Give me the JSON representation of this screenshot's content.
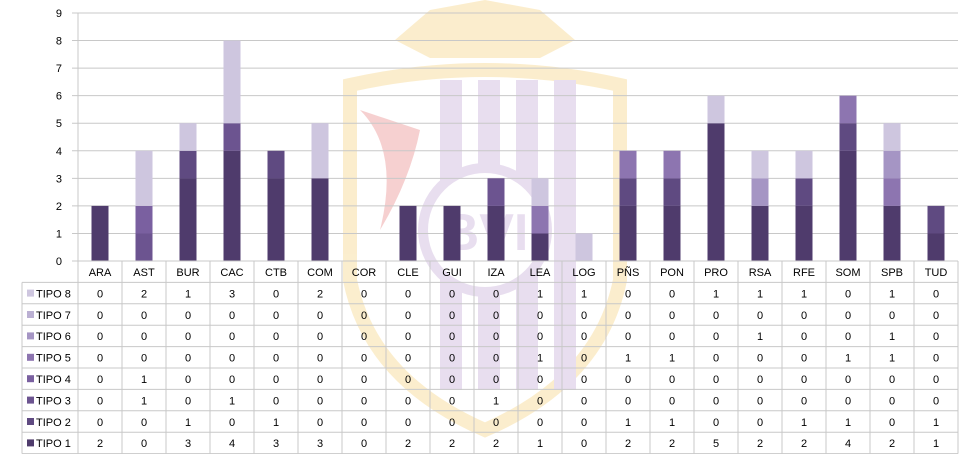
{
  "colors": {
    "tipo1": "#4f3b6c",
    "tipo2": "#5f4a81",
    "tipo3": "#6c5490",
    "tipo4": "#7a60a0",
    "tipo5": "#8d75b0",
    "tipo6": "#a595c4",
    "tipo7": "#bbb0d3",
    "tipo8": "#cec6df",
    "grid": "#c8c8c8",
    "text": "#000000",
    "watermark_gold": "#f2c24e",
    "watermark_purple": "#b08cc8",
    "watermark_red": "#e05a5a"
  },
  "watermark": {
    "text": "BVI"
  },
  "chart_data": {
    "type": "bar",
    "stacked": true,
    "categories": [
      "ARA",
      "AST",
      "BUR",
      "CAC",
      "CTB",
      "COM",
      "COR",
      "CLE",
      "GUI",
      "IZA",
      "LEA",
      "LOG",
      "PÑS",
      "PON",
      "PRO",
      "RSA",
      "RFE",
      "SOM",
      "SPB",
      "TUD"
    ],
    "series": [
      {
        "name": "TIPO 1",
        "values": [
          2,
          0,
          3,
          4,
          3,
          3,
          0,
          2,
          2,
          2,
          1,
          0,
          2,
          2,
          5,
          2,
          2,
          4,
          2,
          1
        ]
      },
      {
        "name": "TIPO 2",
        "values": [
          0,
          0,
          1,
          0,
          1,
          0,
          0,
          0,
          0,
          0,
          0,
          0,
          1,
          1,
          0,
          0,
          1,
          1,
          0,
          1
        ]
      },
      {
        "name": "TIPO 3",
        "values": [
          0,
          1,
          0,
          1,
          0,
          0,
          0,
          0,
          0,
          1,
          0,
          0,
          0,
          0,
          0,
          0,
          0,
          0,
          0,
          0
        ]
      },
      {
        "name": "TIPO 4",
        "values": [
          0,
          1,
          0,
          0,
          0,
          0,
          0,
          0,
          0,
          0,
          0,
          0,
          0,
          0,
          0,
          0,
          0,
          0,
          0,
          0
        ]
      },
      {
        "name": "TIPO 5",
        "values": [
          0,
          0,
          0,
          0,
          0,
          0,
          0,
          0,
          0,
          0,
          1,
          0,
          1,
          1,
          0,
          0,
          0,
          1,
          1,
          0
        ]
      },
      {
        "name": "TIPO 6",
        "values": [
          0,
          0,
          0,
          0,
          0,
          0,
          0,
          0,
          0,
          0,
          0,
          0,
          0,
          0,
          0,
          1,
          0,
          0,
          1,
          0
        ]
      },
      {
        "name": "TIPO 7",
        "values": [
          0,
          0,
          0,
          0,
          0,
          0,
          0,
          0,
          0,
          0,
          0,
          0,
          0,
          0,
          0,
          0,
          0,
          0,
          0,
          0
        ]
      },
      {
        "name": "TIPO 8",
        "values": [
          0,
          2,
          1,
          3,
          0,
          2,
          0,
          0,
          0,
          0,
          1,
          1,
          0,
          0,
          1,
          1,
          1,
          0,
          1,
          0
        ]
      }
    ],
    "table_row_order": [
      "TIPO 8",
      "TIPO 7",
      "TIPO 6",
      "TIPO 5",
      "TIPO 4",
      "TIPO 3",
      "TIPO 2",
      "TIPO 1"
    ],
    "ylim": [
      0,
      9
    ],
    "yticks": [
      0,
      1,
      2,
      3,
      4,
      5,
      6,
      7,
      8,
      9
    ],
    "grid": true,
    "legend": "data-table-below"
  }
}
